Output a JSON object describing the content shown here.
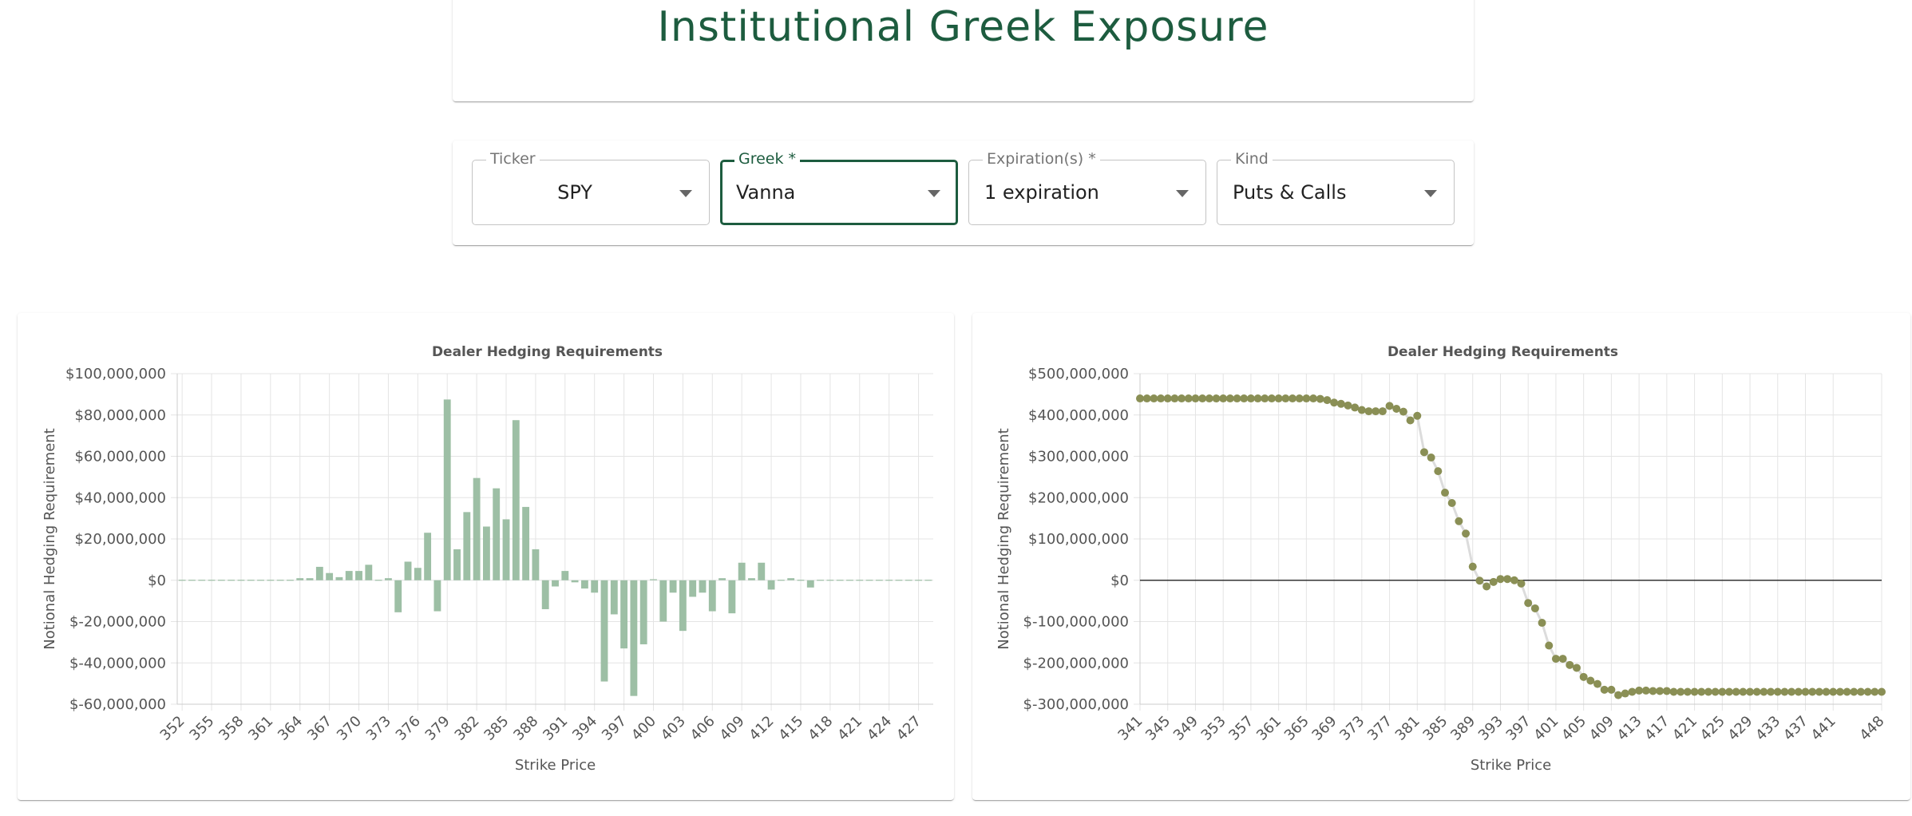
{
  "page": {
    "title": "Institutional Greek Exposure"
  },
  "controls": {
    "ticker": {
      "label": "Ticker",
      "value": "SPY"
    },
    "greek": {
      "label": "Greek *",
      "value": "Vanna"
    },
    "expirations": {
      "label": "Expiration(s) *",
      "value": "1 expiration"
    },
    "kind": {
      "label": "Kind",
      "value": "Puts & Calls"
    }
  },
  "colors": {
    "accent": "#1d5c3f",
    "bar": "#9dbfa5",
    "dot": "#8a8f55",
    "line": "#dcdcdc"
  },
  "chart_data": [
    {
      "type": "bar",
      "title": "Dealer Hedging Requirements",
      "xlabel": "Strike Price",
      "ylabel": "Notional Hedging Requirement",
      "ylim": [
        -60000000,
        100000000
      ],
      "yticks": [
        "$100,000,000",
        "$80,000,000",
        "$60,000,000",
        "$40,000,000",
        "$20,000,000",
        "$0",
        "$-20,000,000",
        "$-40,000,000",
        "$-60,000,000"
      ],
      "ytick_values": [
        100000000,
        80000000,
        60000000,
        40000000,
        20000000,
        0,
        -20000000,
        -40000000,
        -60000000
      ],
      "xtick_labels": [
        "352",
        "355",
        "358",
        "361",
        "364",
        "367",
        "370",
        "373",
        "376",
        "379",
        "382",
        "385",
        "388",
        "391",
        "394",
        "397",
        "400",
        "403",
        "406",
        "409",
        "412",
        "415",
        "418",
        "421",
        "424",
        "427"
      ],
      "categories": [
        352,
        353,
        354,
        355,
        356,
        357,
        358,
        359,
        360,
        361,
        362,
        363,
        364,
        365,
        366,
        367,
        368,
        369,
        370,
        371,
        372,
        373,
        374,
        375,
        376,
        377,
        378,
        379,
        380,
        381,
        382,
        383,
        384,
        385,
        386,
        387,
        388,
        389,
        390,
        391,
        392,
        393,
        394,
        395,
        396,
        397,
        398,
        399,
        400,
        401,
        402,
        403,
        404,
        405,
        406,
        407,
        408,
        409,
        410,
        411,
        412,
        413,
        414,
        415,
        416,
        417,
        418,
        419,
        420,
        421,
        422,
        423,
        424,
        425,
        426,
        427,
        428
      ],
      "values": [
        -200000,
        -200000,
        -300000,
        -400000,
        -300000,
        -300000,
        -200000,
        -200000,
        0,
        0,
        0,
        0,
        1000000,
        1000000,
        6500000,
        3500000,
        1500000,
        4500000,
        4500000,
        7500000,
        0,
        1000000,
        -15500000,
        9000000,
        6000000,
        23000000,
        -15000000,
        87500000,
        15000000,
        33000000,
        49500000,
        26000000,
        44500000,
        29500000,
        77500000,
        35500000,
        15000000,
        -14000000,
        -3000000,
        4500000,
        -1000000,
        -4000000,
        -6000000,
        -49000000,
        -16500000,
        -33000000,
        -56000000,
        -31000000,
        500000,
        -20000000,
        -6000000,
        -24500000,
        -8000000,
        -6000000,
        -15000000,
        1000000,
        -16000000,
        8500000,
        1000000,
        8500000,
        -4500000,
        0,
        1000000,
        0,
        -3500000,
        -300000,
        -200000,
        -300000,
        -300000,
        -300000,
        -300000,
        -300000,
        -300000,
        -300000,
        -300000,
        -300000,
        -300000
      ]
    },
    {
      "type": "line",
      "title": "Dealer Hedging Requirements",
      "xlabel": "Strike Price",
      "ylabel": "Notional Hedging Requirement",
      "ylim": [
        -300000000,
        500000000
      ],
      "yticks": [
        "$500,000,000",
        "$400,000,000",
        "$300,000,000",
        "$200,000,000",
        "$100,000,000",
        "$0",
        "$-100,000,000",
        "$-200,000,000",
        "$-300,000,000"
      ],
      "ytick_values": [
        500000000,
        400000000,
        300000000,
        200000000,
        100000000,
        0,
        -100000000,
        -200000000,
        -300000000
      ],
      "xtick_labels": [
        "341",
        "345",
        "349",
        "353",
        "357",
        "361",
        "365",
        "369",
        "373",
        "377",
        "381",
        "385",
        "389",
        "393",
        "397",
        "401",
        "405",
        "409",
        "413",
        "417",
        "421",
        "425",
        "429",
        "433",
        "437",
        "441",
        "448"
      ],
      "x": [
        341,
        342,
        343,
        344,
        345,
        346,
        347,
        348,
        349,
        350,
        351,
        352,
        353,
        354,
        355,
        356,
        357,
        358,
        359,
        360,
        361,
        362,
        363,
        364,
        365,
        366,
        367,
        368,
        369,
        370,
        371,
        372,
        373,
        374,
        375,
        376,
        377,
        378,
        379,
        380,
        381,
        382,
        383,
        384,
        385,
        386,
        387,
        388,
        389,
        390,
        391,
        392,
        393,
        394,
        395,
        396,
        397,
        398,
        399,
        400,
        401,
        402,
        403,
        404,
        405,
        406,
        407,
        408,
        409,
        410,
        411,
        412,
        413,
        414,
        415,
        416,
        417,
        418,
        419,
        420,
        421,
        422,
        423,
        424,
        425,
        426,
        427,
        428,
        429,
        430,
        431,
        432,
        433,
        434,
        435,
        436,
        437,
        438,
        439,
        440,
        441,
        442,
        443,
        444,
        445,
        446,
        447,
        448
      ],
      "values": [
        440000000,
        440000000,
        440000000,
        440000000,
        440000000,
        440000000,
        440000000,
        440000000,
        440000000,
        440000000,
        440000000,
        440000000,
        440000000,
        440000000,
        440000000,
        440000000,
        440000000,
        440000000,
        440000000,
        440000000,
        440000000,
        440000000,
        440000000,
        440000000,
        440000000,
        440000000,
        439000000,
        436000000,
        430000000,
        427000000,
        423000000,
        418000000,
        412000000,
        409000000,
        409000000,
        409000000,
        422000000,
        415000000,
        408000000,
        387000000,
        398000000,
        310000000,
        297000000,
        264000000,
        212000000,
        187000000,
        143000000,
        113000000,
        33000000,
        -1000000,
        -15000000,
        -4000000,
        3000000,
        3000000,
        0,
        -8000000,
        -55000000,
        -68000000,
        -103000000,
        -158000000,
        -190000000,
        -190000000,
        -205000000,
        -212000000,
        -234000000,
        -243000000,
        -251000000,
        -265000000,
        -265000000,
        -278000000,
        -274000000,
        -270000000,
        -267000000,
        -267000000,
        -268000000,
        -268000000,
        -268000000,
        -270000000,
        -270000000,
        -270000000,
        -270000000,
        -270000000,
        -270000000,
        -270000000,
        -270000000,
        -270000000,
        -270000000,
        -270000000,
        -270000000,
        -270000000,
        -270000000,
        -270000000,
        -270000000,
        -270000000,
        -270000000,
        -270000000,
        -270000000,
        -270000000,
        -270000000,
        -270000000,
        -270000000,
        -270000000,
        -270000000,
        -270000000,
        -270000000,
        -270000000,
        -270000000,
        -270000000
      ]
    }
  ]
}
